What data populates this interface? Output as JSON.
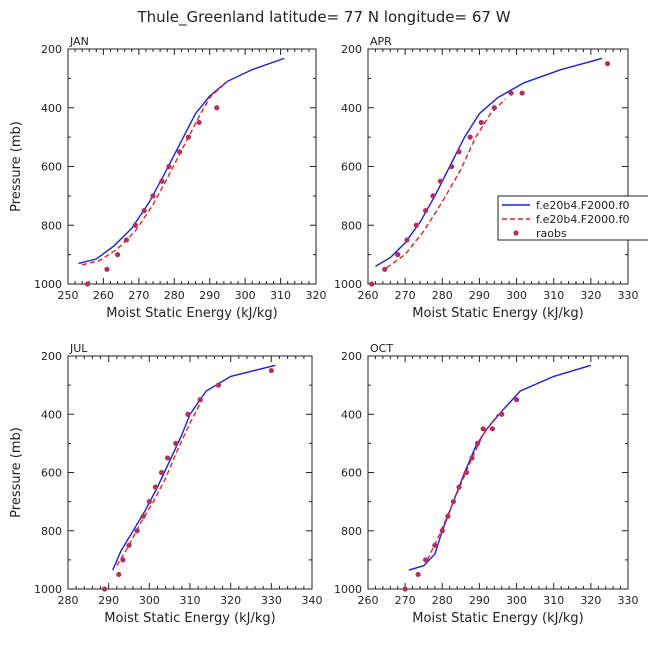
{
  "figure_title": "Thule_Greenland  latitude= 77 N longitude= 67 W",
  "legend": {
    "entries": [
      {
        "label": "f.e20b4.F2000.f0",
        "color": "#1f1fd6",
        "style": "solid"
      },
      {
        "label": "f.e20b4.F2000.f0",
        "color": "#e0241f",
        "style": "dashed"
      },
      {
        "label": "raobs",
        "color": "#b03060",
        "style": "dot"
      }
    ]
  },
  "chart_data": [
    {
      "type": "line",
      "panel_label": "JAN",
      "xlabel": "Moist Static Energy (kJ/kg)",
      "ylabel": "Pressure (mb)",
      "xlim": [
        250,
        320
      ],
      "ylim": [
        1000,
        200
      ],
      "xticks": [
        250,
        260,
        270,
        280,
        290,
        300,
        310,
        320
      ],
      "yticks": [
        200,
        400,
        600,
        800,
        1000
      ],
      "series": [
        {
          "name": "f.e20b4.F2000.f0",
          "color": "#1f1fd6",
          "style": "solid",
          "x": [
            253,
            258,
            263,
            268,
            273,
            277,
            280,
            283,
            286,
            290,
            295,
            302,
            311
          ],
          "y": [
            930,
            915,
            870,
            810,
            720,
            630,
            560,
            490,
            420,
            360,
            310,
            270,
            232
          ]
        },
        {
          "name": "f.e20b4.F2000.f0",
          "color": "#e0241f",
          "style": "dashed",
          "x": [
            254,
            259,
            264,
            269,
            274,
            278,
            281,
            284,
            287,
            290,
            295
          ],
          "y": [
            935,
            920,
            880,
            820,
            730,
            640,
            570,
            500,
            430,
            365,
            310
          ]
        },
        {
          "name": "raobs",
          "color": "#b03060",
          "style": "dot",
          "x": [
            255.5,
            261,
            264,
            266.5,
            269,
            271.5,
            274,
            276.5,
            278.5,
            281.5,
            284,
            287,
            292
          ],
          "y": [
            1000,
            950,
            900,
            850,
            800,
            750,
            700,
            650,
            600,
            550,
            500,
            450,
            400
          ]
        }
      ]
    },
    {
      "type": "line",
      "panel_label": "APR",
      "xlabel": "Moist Static Energy (kJ/kg)",
      "ylabel": "",
      "xlim": [
        260,
        330
      ],
      "ylim": [
        1000,
        200
      ],
      "xticks": [
        260,
        270,
        280,
        290,
        300,
        310,
        320,
        330
      ],
      "yticks": [
        200,
        400,
        600,
        800,
        1000
      ],
      "series": [
        {
          "name": "f.e20b4.F2000.f0",
          "color": "#1f1fd6",
          "style": "solid",
          "x": [
            262,
            266,
            270,
            274,
            278,
            282,
            286,
            290,
            295,
            302,
            312,
            323
          ],
          "y": [
            940,
            910,
            860,
            790,
            700,
            600,
            500,
            420,
            365,
            315,
            270,
            232
          ]
        },
        {
          "name": "f.e20b4.F2000.f0",
          "color": "#e0241f",
          "style": "dashed",
          "x": [
            265,
            270,
            275,
            280,
            285,
            289,
            293,
            297
          ],
          "y": [
            945,
            900,
            820,
            720,
            610,
            500,
            420,
            370
          ]
        },
        {
          "name": "raobs",
          "color": "#b03060",
          "style": "dot",
          "x": [
            261,
            264.5,
            268,
            270.5,
            273,
            275.5,
            277.5,
            279.5,
            282.5,
            284.5,
            287.5,
            290.5,
            294,
            298.5,
            301.5,
            324.5
          ],
          "y": [
            1000,
            950,
            900,
            850,
            800,
            750,
            700,
            650,
            600,
            550,
            500,
            450,
            400,
            350,
            350,
            250
          ]
        }
      ]
    },
    {
      "type": "line",
      "panel_label": "JUL",
      "xlabel": "Moist Static Energy (kJ/kg)",
      "ylabel": "Pressure (mb)",
      "xlim": [
        280,
        340
      ],
      "ylim": [
        1000,
        200
      ],
      "xticks": [
        280,
        290,
        300,
        310,
        320,
        330,
        340
      ],
      "yticks": [
        200,
        400,
        600,
        800,
        1000
      ],
      "series": [
        {
          "name": "f.e20b4.F2000.f0",
          "color": "#1f1fd6",
          "style": "solid",
          "x": [
            291,
            293,
            296,
            299,
            302,
            305,
            308,
            310,
            312,
            314,
            320,
            331
          ],
          "y": [
            935,
            870,
            800,
            730,
            650,
            560,
            470,
            400,
            360,
            320,
            270,
            232
          ]
        },
        {
          "name": "f.e20b4.F2000.f0",
          "color": "#e0241f",
          "style": "dashed",
          "x": [
            292,
            295,
            298,
            301,
            304,
            307,
            310,
            313
          ],
          "y": [
            920,
            850,
            770,
            700,
            620,
            520,
            430,
            350
          ]
        },
        {
          "name": "raobs",
          "color": "#b03060",
          "style": "dot",
          "x": [
            289,
            292.5,
            293.5,
            295,
            297,
            298.5,
            300,
            301.5,
            303,
            304.5,
            306.5,
            309.5,
            312.5,
            317,
            330
          ],
          "y": [
            1000,
            950,
            900,
            850,
            800,
            750,
            700,
            650,
            600,
            550,
            500,
            400,
            350,
            300,
            250
          ]
        }
      ]
    },
    {
      "type": "line",
      "panel_label": "OCT",
      "xlabel": "Moist Static Energy (kJ/kg)",
      "ylabel": "",
      "xlim": [
        260,
        330
      ],
      "ylim": [
        1000,
        200
      ],
      "xticks": [
        260,
        270,
        280,
        290,
        300,
        310,
        320,
        330
      ],
      "yticks": [
        200,
        400,
        600,
        800,
        1000
      ],
      "series": [
        {
          "name": "f.e20b4.F2000.f0",
          "color": "#1f1fd6",
          "style": "solid",
          "x": [
            271,
            275,
            278,
            280,
            283,
            286,
            289,
            292,
            296,
            301,
            310,
            320
          ],
          "y": [
            935,
            920,
            880,
            800,
            700,
            600,
            510,
            450,
            390,
            320,
            270,
            232
          ]
        },
        {
          "name": "f.e20b4.F2000.f0",
          "color": "#e0241f",
          "style": "dashed",
          "x": [
            276,
            279,
            282,
            285,
            288,
            291,
            295
          ],
          "y": [
            900,
            820,
            730,
            640,
            550,
            470,
            400
          ]
        },
        {
          "name": "raobs",
          "color": "#b03060",
          "style": "dot",
          "x": [
            270,
            273.5,
            275.5,
            278,
            280,
            281.5,
            283,
            284.5,
            286.5,
            288,
            289.5,
            291,
            293.5,
            296,
            300
          ],
          "y": [
            1000,
            950,
            900,
            850,
            800,
            750,
            700,
            650,
            600,
            550,
            500,
            450,
            450,
            400,
            350
          ]
        }
      ]
    }
  ]
}
